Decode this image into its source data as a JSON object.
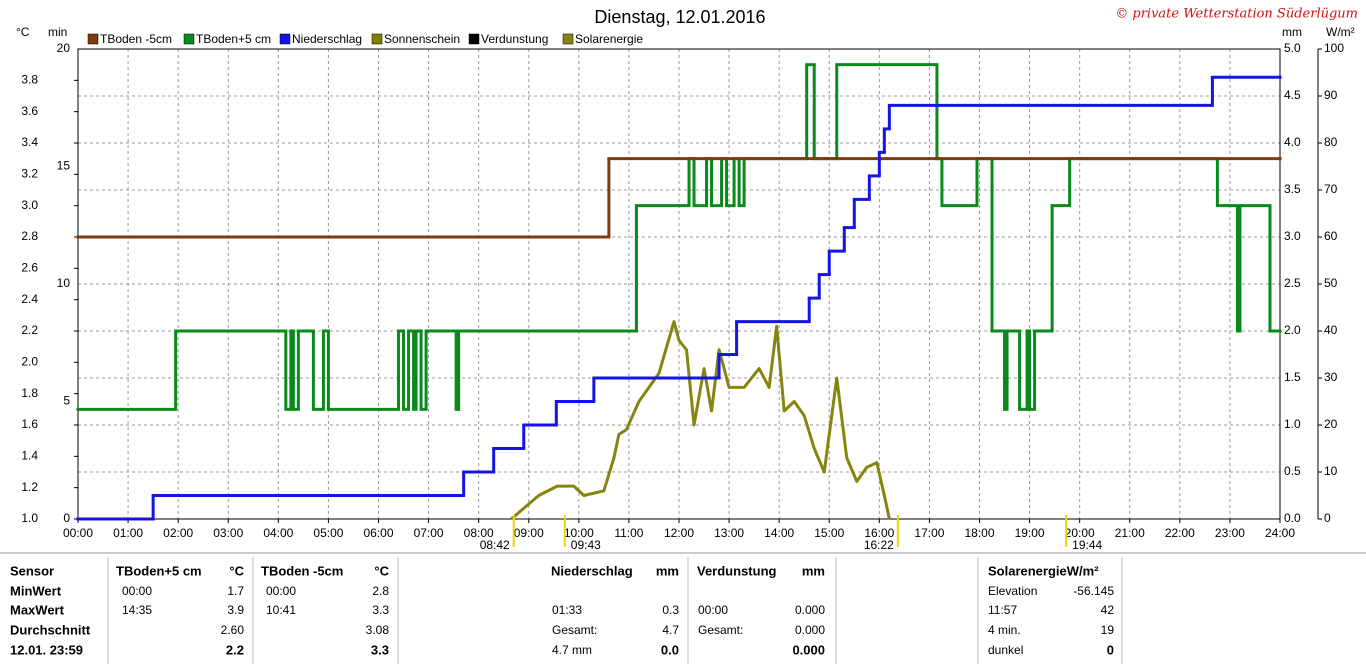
{
  "chart_data": {
    "type": "line",
    "title": "Dienstag, 12.01.2016",
    "copyright": "© private Wetterstation Süderlügum",
    "axis_labels": {
      "y": "°C",
      "y4": "min",
      "y2": "mm",
      "y3": "W/m²"
    },
    "xlim": [
      0,
      24
    ],
    "xticks": [
      {
        "value": 0,
        "label": "00:00"
      },
      {
        "value": 1,
        "label": "01:00"
      },
      {
        "value": 2,
        "label": "02:00"
      },
      {
        "value": 3,
        "label": "03:00"
      },
      {
        "value": 4,
        "label": "04:00"
      },
      {
        "value": 5,
        "label": "05:00"
      },
      {
        "value": 6,
        "label": "06:00"
      },
      {
        "value": 7,
        "label": "07:00"
      },
      {
        "value": 8,
        "label": "08:00"
      },
      {
        "value": 9,
        "label": "09:00"
      },
      {
        "value": 10,
        "label": "10:00"
      },
      {
        "value": 11,
        "label": "11:00"
      },
      {
        "value": 12,
        "label": "12:00"
      },
      {
        "value": 13,
        "label": "13:00"
      },
      {
        "value": 14,
        "label": "14:00"
      },
      {
        "value": 15,
        "label": "15:00"
      },
      {
        "value": 16,
        "label": "16:00"
      },
      {
        "value": 17,
        "label": "17:00"
      },
      {
        "value": 18,
        "label": "18:00"
      },
      {
        "value": 19,
        "label": "19:00"
      },
      {
        "value": 20,
        "label": "20:00"
      },
      {
        "value": 21,
        "label": "21:00"
      },
      {
        "value": 22,
        "label": "22:00"
      },
      {
        "value": 23,
        "label": "23:00"
      },
      {
        "value": 24,
        "label": "24:00"
      }
    ],
    "ylim": [
      1,
      4
    ],
    "yticks": [
      {
        "value": 1,
        "label": "1.0"
      },
      {
        "value": 1.2,
        "label": "1.2"
      },
      {
        "value": 1.4,
        "label": "1.4"
      },
      {
        "value": 1.6,
        "label": "1.6"
      },
      {
        "value": 1.8,
        "label": "1.8"
      },
      {
        "value": 2,
        "label": "2.0"
      },
      {
        "value": 2.2,
        "label": "2.2"
      },
      {
        "value": 2.4,
        "label": "2.4"
      },
      {
        "value": 2.6,
        "label": "2.6"
      },
      {
        "value": 2.8,
        "label": "2.8"
      },
      {
        "value": 3,
        "label": "3.0"
      },
      {
        "value": 3.2,
        "label": "3.2"
      },
      {
        "value": 3.4,
        "label": "3.4"
      },
      {
        "value": 3.6,
        "label": "3.6"
      },
      {
        "value": 3.8,
        "label": "3.8"
      }
    ],
    "y4lim": [
      0,
      20
    ],
    "y4ticks": [
      0,
      5,
      10,
      15,
      20
    ],
    "y2lim": [
      0,
      5
    ],
    "y2ticks": [
      {
        "value": 0,
        "label": "0.0"
      },
      {
        "value": 0.5,
        "label": "0.5"
      },
      {
        "value": 1,
        "label": "1.0"
      },
      {
        "value": 1.5,
        "label": "1.5"
      },
      {
        "value": 2,
        "label": "2.0"
      },
      {
        "value": 2.5,
        "label": "2.5"
      },
      {
        "value": 3,
        "label": "3.0"
      },
      {
        "value": 3.5,
        "label": "3.5"
      },
      {
        "value": 4,
        "label": "4.0"
      },
      {
        "value": 4.5,
        "label": "4.5"
      },
      {
        "value": 5,
        "label": "5.0"
      }
    ],
    "y3lim": [
      0,
      100
    ],
    "y3ticks": [
      0,
      10,
      20,
      30,
      40,
      50,
      60,
      70,
      80,
      90,
      100
    ],
    "grid": true,
    "series": [
      {
        "name": "TBoden -5cm",
        "color": "#7f3a10",
        "axis": "y",
        "step": true,
        "x": [
          0,
          10.6,
          24
        ],
        "values": [
          2.8,
          3.3,
          3.3
        ]
      },
      {
        "name": "TBoden+5 cm",
        "color": "#0a8a1a",
        "axis": "y",
        "step": true,
        "x": [
          0,
          1.95,
          4.15,
          4.25,
          4.3,
          4.4,
          4.7,
          4.9,
          5.0,
          6.4,
          6.5,
          6.6,
          6.7,
          6.75,
          6.85,
          6.95,
          7.55,
          7.6,
          11.15,
          12.2,
          12.3,
          12.55,
          12.65,
          12.85,
          12.95,
          13.1,
          13.2,
          13.3,
          14.55,
          14.7,
          15.15,
          17.15,
          17.25,
          17.95,
          18.25,
          18.5,
          18.55,
          18.8,
          18.95,
          19.0,
          19.1,
          19.45,
          19.8,
          22.75,
          23.15,
          23.2,
          23.8,
          24
        ],
        "values": [
          1.7,
          2.2,
          1.7,
          2.2,
          1.7,
          2.2,
          1.7,
          2.2,
          1.7,
          2.2,
          1.7,
          2.2,
          1.7,
          2.2,
          1.7,
          2.2,
          1.7,
          2.2,
          3.0,
          3.3,
          3.0,
          3.3,
          3.0,
          3.3,
          3.0,
          3.3,
          3.0,
          3.3,
          3.9,
          3.3,
          3.9,
          3.3,
          3.0,
          3.3,
          2.2,
          1.7,
          2.2,
          1.7,
          2.2,
          1.7,
          2.2,
          3.0,
          3.3,
          3.0,
          2.2,
          3.0,
          2.2,
          2.2
        ]
      },
      {
        "name": "Niederschlag",
        "color": "#1414e6",
        "axis": "y2",
        "step": true,
        "x": [
          0,
          1.5,
          7.7,
          8.3,
          8.9,
          9.55,
          10.3,
          12.8,
          13.15,
          14.6,
          14.8,
          15.0,
          15.3,
          15.5,
          15.8,
          16.0,
          16.1,
          16.2,
          22.65,
          24
        ],
        "values": [
          0,
          0.25,
          0.5,
          0.75,
          1.0,
          1.25,
          1.5,
          1.75,
          2.1,
          2.35,
          2.6,
          2.85,
          3.1,
          3.4,
          3.65,
          3.9,
          4.15,
          4.4,
          4.7,
          4.7
        ]
      },
      {
        "name": "Sonnenschein",
        "color": "#808000",
        "axis": "y4",
        "x": [],
        "values": []
      },
      {
        "name": "Verdunstung",
        "color": "#000000",
        "axis": "y2",
        "x": [],
        "values": []
      },
      {
        "name": "Solarenergie",
        "color": "#858510",
        "axis": "y3",
        "x": [
          8.65,
          9.2,
          9.57,
          9.9,
          10.1,
          10.5,
          10.7,
          10.8,
          10.95,
          11.2,
          11.6,
          11.9,
          12.0,
          12.15,
          12.3,
          12.5,
          12.65,
          12.8,
          13.0,
          13.3,
          13.6,
          13.8,
          13.95,
          14.1,
          14.3,
          14.5,
          14.7,
          14.9,
          15.15,
          15.35,
          15.55,
          15.75,
          15.95,
          16.1,
          16.2
        ],
        "values": [
          0,
          5,
          7,
          7,
          5,
          6,
          13,
          18,
          19,
          25,
          31,
          42,
          38,
          36,
          20,
          32,
          23,
          36,
          28,
          28,
          32,
          28,
          41,
          23,
          25,
          22,
          15,
          10,
          30,
          13,
          8,
          11,
          12,
          5,
          0
        ]
      }
    ],
    "sun_events": [
      {
        "x": 8.7,
        "label": "08:42"
      },
      {
        "x": 9.72,
        "label": "09:43"
      },
      {
        "x": 16.37,
        "label": "16:22"
      },
      {
        "x": 19.73,
        "label": "19:44"
      }
    ]
  },
  "stats": {
    "row_labels": [
      "Sensor",
      "MinWert",
      "MaxWert",
      "Durchschnitt",
      "12.01. 23:59"
    ],
    "panels": [
      {
        "header": [
          "TBoden+5 cm",
          "°C"
        ],
        "rows": [
          [
            "00:00",
            "1.7"
          ],
          [
            "14:35",
            "3.9"
          ],
          [
            null,
            "2.60"
          ],
          [
            null,
            "2.2"
          ]
        ]
      },
      {
        "header": [
          "TBoden -5cm",
          "°C"
        ],
        "rows": [
          [
            "00:00",
            "2.8"
          ],
          [
            "10:41",
            "3.3"
          ],
          [
            null,
            "3.08"
          ],
          [
            null,
            "3.3"
          ]
        ]
      },
      {
        "header": [
          "Niederschlag",
          "mm"
        ],
        "rows": [
          [
            null,
            null
          ],
          [
            "01:33",
            "0.3"
          ],
          [
            "Gesamt:",
            "4.7"
          ],
          [
            "4.7 mm",
            "0.0"
          ]
        ]
      },
      {
        "header": [
          "Verdunstung",
          "mm"
        ],
        "rows": [
          [
            null,
            null
          ],
          [
            "00:00",
            "0.000"
          ],
          [
            "Gesamt:",
            "0.000"
          ],
          [
            null,
            "0.000"
          ]
        ]
      },
      {
        "header": [
          "SolarenergieW/m²"
        ],
        "rows": [
          [
            "Elevation",
            "-56.145"
          ],
          [
            "11:57",
            "42"
          ],
          [
            "4 min.",
            "19"
          ],
          [
            "dunkel",
            "0"
          ]
        ]
      }
    ]
  }
}
